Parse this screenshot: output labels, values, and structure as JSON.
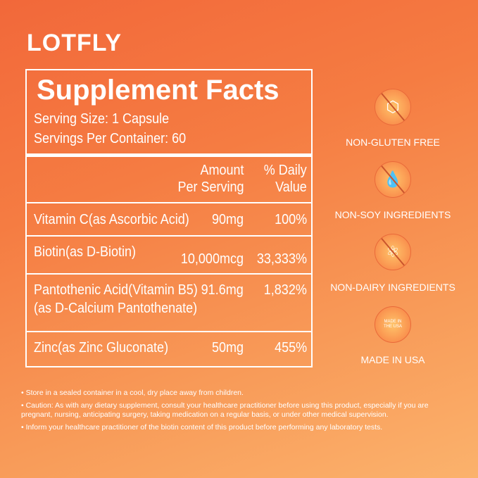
{
  "brand": "LOTFLY",
  "facts": {
    "title": "Supplement Facts",
    "serving_size": "Serving Size: 1 Capsule",
    "servings_per_container": "Servings Per Container: 60",
    "col_amount": [
      "Amount",
      "Per Serving"
    ],
    "col_daily": [
      "% Daily",
      "Value"
    ],
    "rows": [
      {
        "name": "Vitamin C(as Ascorbic Acid)",
        "amount": "90mg",
        "dv": "100%"
      },
      {
        "name": "Biotin(as D-Biotin)",
        "amount": "10,000mcg",
        "dv": "33,333%"
      },
      {
        "name": "Pantothenic Acid(Vitamin B5)",
        "name2": "(as D-Calcium Pantothenate)",
        "amount": "91.6mg",
        "dv": "1,832%"
      },
      {
        "name": "Zinc(as Zinc Gluconate)",
        "amount": "50mg",
        "dv": "455%"
      }
    ]
  },
  "features": [
    {
      "label": "NON-GLUTEN FREE",
      "icon": "molecule-icon"
    },
    {
      "label": "NON-SOY INGREDIENTS",
      "icon": "soy-drop-icon"
    },
    {
      "label": "NON-DAIRY INGREDIENTS",
      "icon": "atom-icon"
    },
    {
      "label": "MADE IN USA",
      "icon": "usa-badge-icon",
      "badge": "MADE IN THE USA"
    }
  ],
  "notes": [
    "• Store in a sealed container in a cool, dry place away from children.",
    "• Caution:  As with any dietary supplement, consult your healthcare practitioner before using this product, especially if you are pregnant, nursing, anticipating surgery, taking medication on a regular basis, or under other medical supervision.",
    "• Inform your healthcare practitioner of the biotin content of this product before performing any laboratory tests."
  ]
}
